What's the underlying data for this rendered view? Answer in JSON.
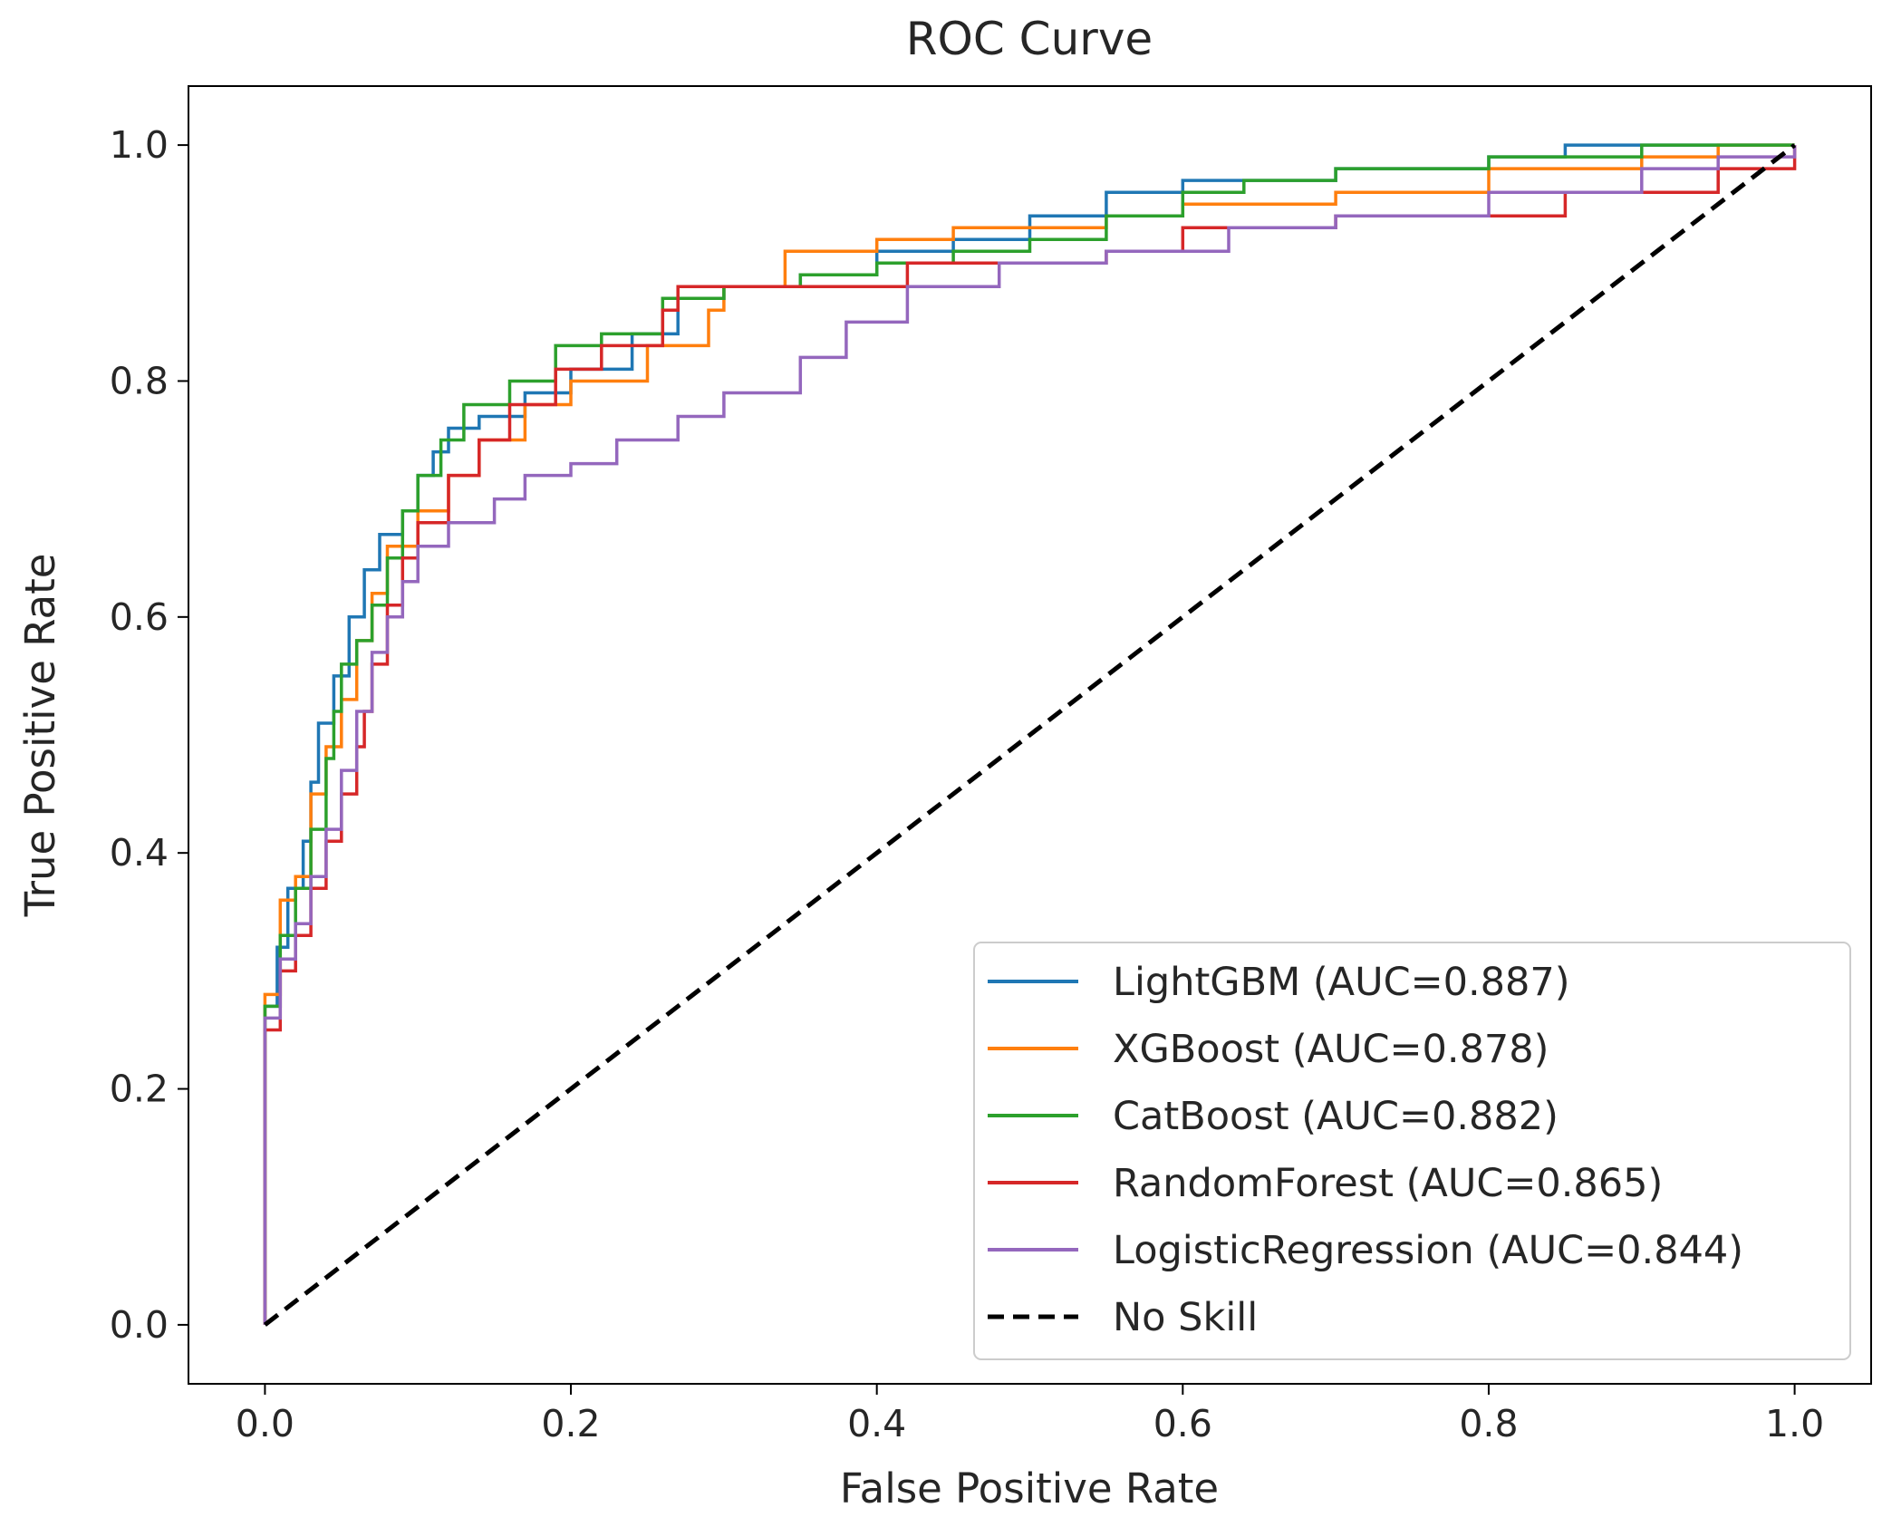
{
  "chart_data": {
    "type": "line",
    "title": "ROC Curve",
    "xlabel": "False Positive Rate",
    "ylabel": "True Positive Rate",
    "xlim": [
      -0.05,
      1.05
    ],
    "ylim": [
      -0.05,
      1.05
    ],
    "xticks": [
      0.0,
      0.2,
      0.4,
      0.6,
      0.8,
      1.0
    ],
    "yticks": [
      0.0,
      0.2,
      0.4,
      0.6,
      0.8,
      1.0
    ],
    "tick_labels_x": [
      "0.0",
      "0.2",
      "0.4",
      "0.6",
      "0.8",
      "1.0"
    ],
    "tick_labels_y": [
      "0.0",
      "0.2",
      "0.4",
      "0.6",
      "0.8",
      "1.0"
    ],
    "grid": false,
    "legend_position": "lower-right",
    "series": [
      {
        "name": "LightGBM (AUC=0.887)",
        "color": "#1f77b4",
        "points": [
          [
            0,
            0
          ],
          [
            0,
            0.27
          ],
          [
            0.008,
            0.32
          ],
          [
            0.015,
            0.37
          ],
          [
            0.025,
            0.41
          ],
          [
            0.03,
            0.46
          ],
          [
            0.035,
            0.51
          ],
          [
            0.045,
            0.55
          ],
          [
            0.055,
            0.6
          ],
          [
            0.065,
            0.64
          ],
          [
            0.075,
            0.67
          ],
          [
            0.09,
            0.69
          ],
          [
            0.1,
            0.72
          ],
          [
            0.11,
            0.74
          ],
          [
            0.12,
            0.76
          ],
          [
            0.14,
            0.77
          ],
          [
            0.17,
            0.79
          ],
          [
            0.2,
            0.81
          ],
          [
            0.24,
            0.84
          ],
          [
            0.27,
            0.87
          ],
          [
            0.3,
            0.88
          ],
          [
            0.35,
            0.89
          ],
          [
            0.4,
            0.91
          ],
          [
            0.45,
            0.92
          ],
          [
            0.5,
            0.94
          ],
          [
            0.55,
            0.96
          ],
          [
            0.6,
            0.97
          ],
          [
            0.7,
            0.98
          ],
          [
            0.8,
            0.99
          ],
          [
            0.85,
            1.0
          ],
          [
            1.0,
            1.0
          ]
        ]
      },
      {
        "name": "XGBoost (AUC=0.878)",
        "color": "#ff7f0e",
        "points": [
          [
            0,
            0
          ],
          [
            0,
            0.28
          ],
          [
            0.01,
            0.36
          ],
          [
            0.02,
            0.38
          ],
          [
            0.03,
            0.45
          ],
          [
            0.04,
            0.49
          ],
          [
            0.05,
            0.53
          ],
          [
            0.06,
            0.58
          ],
          [
            0.07,
            0.62
          ],
          [
            0.08,
            0.66
          ],
          [
            0.1,
            0.69
          ],
          [
            0.12,
            0.72
          ],
          [
            0.14,
            0.75
          ],
          [
            0.17,
            0.78
          ],
          [
            0.2,
            0.8
          ],
          [
            0.25,
            0.83
          ],
          [
            0.29,
            0.86
          ],
          [
            0.3,
            0.88
          ],
          [
            0.34,
            0.91
          ],
          [
            0.4,
            0.92
          ],
          [
            0.45,
            0.93
          ],
          [
            0.5,
            0.93
          ],
          [
            0.55,
            0.94
          ],
          [
            0.6,
            0.95
          ],
          [
            0.7,
            0.96
          ],
          [
            0.8,
            0.98
          ],
          [
            0.9,
            0.99
          ],
          [
            0.95,
            1.0
          ],
          [
            1.0,
            1.0
          ]
        ]
      },
      {
        "name": "CatBoost (AUC=0.882)",
        "color": "#2ca02c",
        "points": [
          [
            0,
            0
          ],
          [
            0,
            0.27
          ],
          [
            0.01,
            0.33
          ],
          [
            0.02,
            0.37
          ],
          [
            0.03,
            0.42
          ],
          [
            0.04,
            0.48
          ],
          [
            0.045,
            0.52
          ],
          [
            0.05,
            0.56
          ],
          [
            0.06,
            0.58
          ],
          [
            0.07,
            0.61
          ],
          [
            0.08,
            0.65
          ],
          [
            0.09,
            0.69
          ],
          [
            0.1,
            0.72
          ],
          [
            0.115,
            0.75
          ],
          [
            0.13,
            0.78
          ],
          [
            0.16,
            0.8
          ],
          [
            0.19,
            0.83
          ],
          [
            0.22,
            0.84
          ],
          [
            0.26,
            0.87
          ],
          [
            0.3,
            0.88
          ],
          [
            0.35,
            0.89
          ],
          [
            0.4,
            0.9
          ],
          [
            0.45,
            0.91
          ],
          [
            0.5,
            0.92
          ],
          [
            0.55,
            0.94
          ],
          [
            0.6,
            0.96
          ],
          [
            0.64,
            0.97
          ],
          [
            0.7,
            0.98
          ],
          [
            0.8,
            0.99
          ],
          [
            0.9,
            1.0
          ],
          [
            1.0,
            1.0
          ]
        ]
      },
      {
        "name": "RandomForest (AUC=0.865)",
        "color": "#d62728",
        "points": [
          [
            0,
            0
          ],
          [
            0,
            0.25
          ],
          [
            0.01,
            0.3
          ],
          [
            0.02,
            0.33
          ],
          [
            0.03,
            0.37
          ],
          [
            0.04,
            0.41
          ],
          [
            0.05,
            0.45
          ],
          [
            0.06,
            0.49
          ],
          [
            0.065,
            0.52
          ],
          [
            0.07,
            0.56
          ],
          [
            0.08,
            0.61
          ],
          [
            0.09,
            0.65
          ],
          [
            0.1,
            0.68
          ],
          [
            0.12,
            0.72
          ],
          [
            0.14,
            0.75
          ],
          [
            0.16,
            0.78
          ],
          [
            0.19,
            0.81
          ],
          [
            0.22,
            0.83
          ],
          [
            0.26,
            0.86
          ],
          [
            0.27,
            0.88
          ],
          [
            0.35,
            0.88
          ],
          [
            0.42,
            0.9
          ],
          [
            0.5,
            0.9
          ],
          [
            0.55,
            0.91
          ],
          [
            0.6,
            0.93
          ],
          [
            0.7,
            0.94
          ],
          [
            0.75,
            0.94
          ],
          [
            0.85,
            0.96
          ],
          [
            0.95,
            0.98
          ],
          [
            1.0,
            1.0
          ]
        ]
      },
      {
        "name": "LogisticRegression (AUC=0.844)",
        "color": "#9467bd",
        "points": [
          [
            0,
            0
          ],
          [
            0,
            0.26
          ],
          [
            0.01,
            0.31
          ],
          [
            0.02,
            0.34
          ],
          [
            0.03,
            0.38
          ],
          [
            0.04,
            0.42
          ],
          [
            0.05,
            0.47
          ],
          [
            0.06,
            0.52
          ],
          [
            0.07,
            0.57
          ],
          [
            0.08,
            0.6
          ],
          [
            0.09,
            0.63
          ],
          [
            0.1,
            0.66
          ],
          [
            0.12,
            0.68
          ],
          [
            0.15,
            0.7
          ],
          [
            0.17,
            0.72
          ],
          [
            0.2,
            0.73
          ],
          [
            0.23,
            0.75
          ],
          [
            0.27,
            0.77
          ],
          [
            0.3,
            0.79
          ],
          [
            0.35,
            0.82
          ],
          [
            0.38,
            0.85
          ],
          [
            0.42,
            0.88
          ],
          [
            0.48,
            0.9
          ],
          [
            0.55,
            0.91
          ],
          [
            0.63,
            0.93
          ],
          [
            0.7,
            0.94
          ],
          [
            0.8,
            0.96
          ],
          [
            0.9,
            0.98
          ],
          [
            0.95,
            0.99
          ],
          [
            1.0,
            1.0
          ]
        ]
      },
      {
        "name": "No Skill",
        "color": "#000000",
        "dashed": true,
        "points": [
          [
            0,
            0
          ],
          [
            1,
            1
          ]
        ]
      }
    ]
  }
}
